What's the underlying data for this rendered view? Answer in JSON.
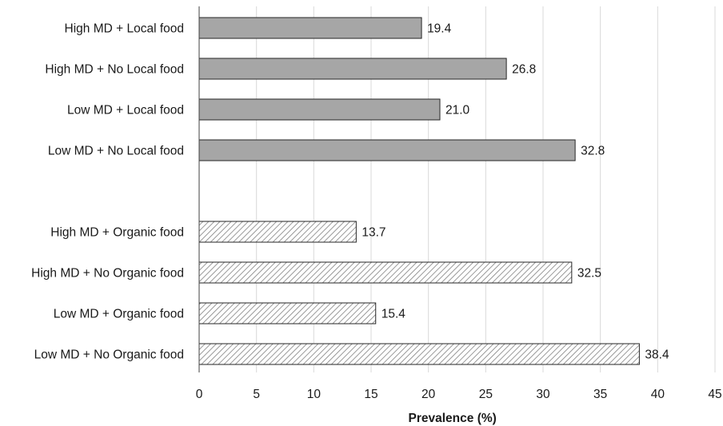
{
  "chart_data": {
    "type": "bar",
    "orientation": "horizontal",
    "title": "",
    "xlabel": "Prevalence (%)",
    "ylabel": "",
    "xlim": [
      0,
      45
    ],
    "x_ticks": [
      0,
      5,
      10,
      15,
      20,
      25,
      30,
      35,
      40,
      45
    ],
    "grid": "vertical",
    "legend": "none",
    "groups": [
      {
        "fill": "solid-gray",
        "color": "#a6a6a6",
        "categories": [
          "High MD + Local food",
          "High MD + No Local food",
          "Low MD + Local food",
          "Low MD + No Local food"
        ],
        "values": [
          19.4,
          26.8,
          21.0,
          32.8
        ],
        "value_labels": [
          "19.4",
          "26.8",
          "21.0",
          "32.8"
        ]
      },
      {
        "fill": "diagonal-hatch",
        "color": "#7f7f7f",
        "categories": [
          "High MD + Organic food",
          "High MD + No Organic food",
          "Low MD + Organic food",
          "Low MD + No Organic food"
        ],
        "values": [
          13.7,
          32.5,
          15.4,
          38.4
        ],
        "value_labels": [
          "13.7",
          "32.5",
          "15.4",
          "38.4"
        ]
      }
    ]
  }
}
